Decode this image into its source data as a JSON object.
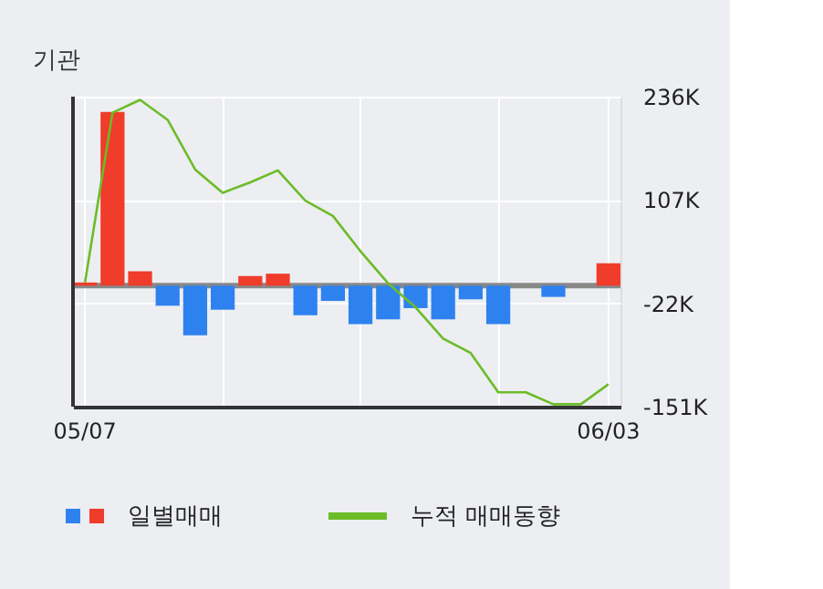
{
  "chart_data": {
    "type": "bar",
    "title": "기관",
    "categories": [
      "05/07",
      null,
      null,
      null,
      null,
      null,
      null,
      null,
      null,
      null,
      null,
      null,
      null,
      null,
      null,
      null,
      null,
      null,
      null,
      "06/03"
    ],
    "series": [
      {
        "name": "일별매매",
        "colors": [
          "#f03c2a",
          "#f03c2a",
          "#f03c2a",
          "#2e82f0",
          "#2e82f0",
          "#2e82f0",
          "#f03c2a",
          "#f03c2a",
          "#2e82f0",
          "#2e82f0",
          "#2e82f0",
          "#2e82f0",
          "#2e82f0",
          "#2e82f0",
          "#2e82f0",
          "#2e82f0",
          "#2e82f0",
          "#2e82f0",
          "#2e82f0",
          "#f03c2a"
        ],
        "values": [
          4,
          217,
          18,
          -25,
          -62,
          -30,
          12,
          15,
          -37,
          -19,
          -48,
          -42,
          -28,
          -42,
          -17,
          -48,
          0,
          -14,
          0,
          28
        ]
      },
      {
        "name": "누적 매매동향",
        "type": "line",
        "color": "#6cbc28",
        "values": [
          4,
          216,
          232,
          207,
          145,
          116,
          129,
          144,
          106,
          87,
          43,
          3,
          -27,
          -66,
          -84,
          -133,
          -133,
          -148,
          -148,
          -123
        ]
      }
    ],
    "ylim": [
      -151,
      236
    ],
    "yticks": [
      {
        "value": 236,
        "label": "236K"
      },
      {
        "value": 107,
        "label": "107K"
      },
      {
        "value": -22,
        "label": "-22K"
      },
      {
        "value": -151,
        "label": "-151K"
      }
    ],
    "ref_lines": [
      {
        "axis": "y",
        "value": 0,
        "label": null,
        "color": "#888888"
      }
    ],
    "grid": true,
    "legend": "bottom"
  }
}
